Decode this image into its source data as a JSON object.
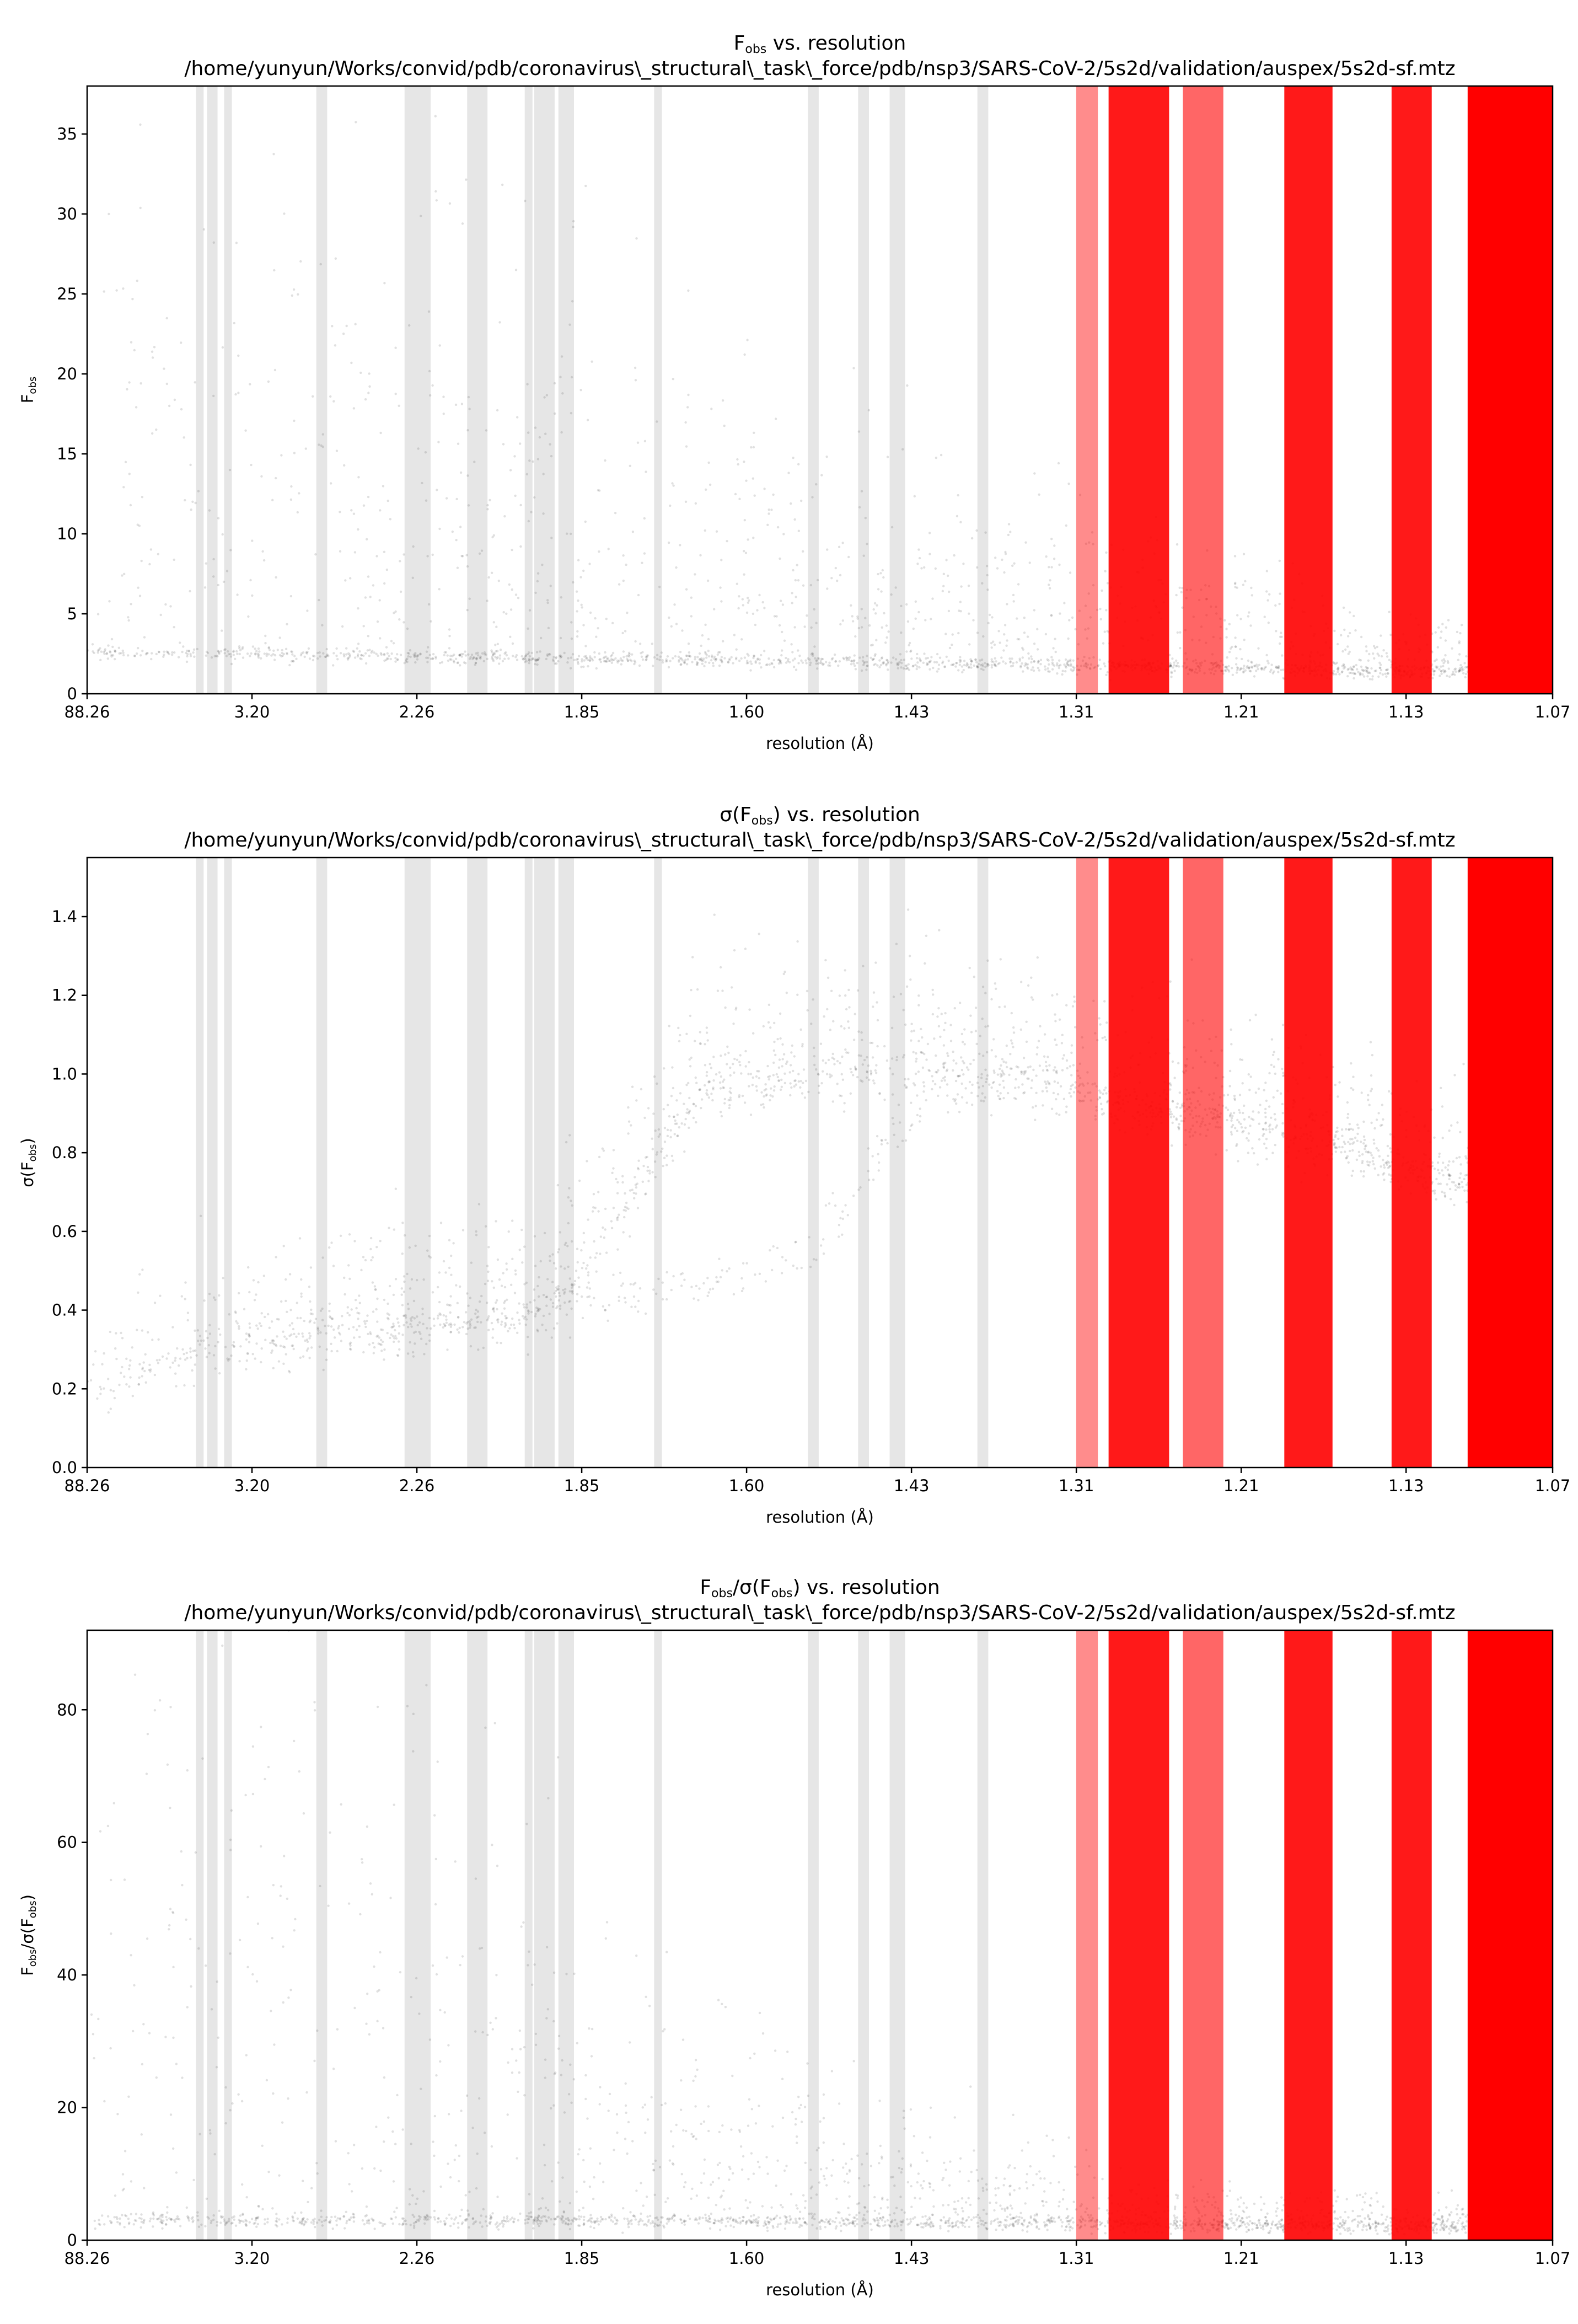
{
  "chart_data": [
    {
      "type": "scatter",
      "title": "F_obs vs. resolution",
      "title_parts": {
        "main": "F",
        "sub": "obs",
        "rest": " vs. resolution"
      },
      "subtitle": "/home/yunyun/Works/convid/pdb/coronavirus\\_structural\\_task\\_force/pdb/nsp3/SARS-CoV-2/5s2d/validation/auspex/5s2d-sf.mtz",
      "xlabel": "resolution (Å)",
      "ylabel": "F_obs",
      "ylabel_parts": {
        "main": "F",
        "sub": "obs",
        "rest": ""
      },
      "ylim": [
        0,
        38
      ],
      "yticks": [
        "0",
        "5",
        "10",
        "15",
        "20",
        "25",
        "30",
        "35"
      ],
      "yticks_values": [
        0,
        5,
        10,
        15,
        20,
        25,
        30,
        35
      ],
      "trend": {
        "x": [
          0.0,
          0.12,
          0.33,
          0.6,
          0.9,
          1.0
        ],
        "y": [
          2.6,
          2.5,
          2.2,
          1.9,
          1.4,
          1.3
        ]
      },
      "spread": {
        "x": [
          0.0,
          0.2,
          0.33,
          0.5,
          0.65,
          0.75,
          0.9,
          1.0
        ],
        "y": [
          34,
          30,
          22,
          14,
          10,
          7,
          4,
          2
        ]
      }
    },
    {
      "type": "scatter",
      "title": "σ(F_obs) vs. resolution",
      "title_parts": {
        "main": "σ(F",
        "sub": "obs",
        "rest": ") vs. resolution"
      },
      "subtitle": "/home/yunyun/Works/convid/pdb/coronavirus\\_structural\\_task\\_force/pdb/nsp3/SARS-CoV-2/5s2d/validation/auspex/5s2d-sf.mtz",
      "xlabel": "resolution (Å)",
      "ylabel": "σ(F_obs)",
      "ylabel_parts": {
        "main": "σ(F",
        "sub": "obs",
        "rest": ")"
      },
      "ylim": [
        0,
        1.55
      ],
      "yticks": [
        "0.0",
        "0.2",
        "0.4",
        "0.6",
        "0.8",
        "1.0",
        "1.2",
        "1.4"
      ],
      "yticks_values": [
        0,
        0.2,
        0.4,
        0.6,
        0.8,
        1.0,
        1.2,
        1.4
      ],
      "trend": {
        "x": [
          0.0,
          0.03,
          0.07,
          0.13,
          0.22,
          0.3,
          0.34,
          0.42,
          0.5,
          0.55,
          0.6,
          0.65,
          0.7,
          0.8,
          0.88,
          0.92,
          0.96,
          1.0
        ],
        "y": [
          0.16,
          0.22,
          0.3,
          0.31,
          0.35,
          0.37,
          0.5,
          0.95,
          0.98,
          1.0,
          0.99,
          0.98,
          0.92,
          0.86,
          0.78,
          0.73,
          0.7,
          0.7
        ]
      },
      "trend2": {
        "x": [
          0.0,
          0.1,
          0.2,
          0.3,
          0.34,
          0.42,
          0.5,
          0.55,
          0.6
        ],
        "y": [
          0.16,
          0.33,
          0.36,
          0.38,
          0.42,
          0.45,
          0.55,
          0.85,
          0.97
        ]
      },
      "spread": {
        "x": [
          0.0,
          0.5,
          1.0
        ],
        "y": [
          0.12,
          0.15,
          0.1
        ]
      }
    },
    {
      "type": "scatter",
      "title": "F_obs/σ(F_obs) vs. resolution",
      "title_parts": {
        "main": "F",
        "sub": "obs",
        "rest": "/σ(F",
        "sub2": "obs",
        "rest2": ") vs. resolution"
      },
      "subtitle": "/home/yunyun/Works/convid/pdb/coronavirus\\_structural\\_task\\_force/pdb/nsp3/SARS-CoV-2/5s2d/validation/auspex/5s2d-sf.mtz",
      "xlabel": "resolution (Å)",
      "ylabel": "F_obs/σ(F_obs)",
      "ylabel_parts": {
        "main": "F",
        "sub": "obs",
        "rest": "/σ(F",
        "sub2": "obs",
        "rest2": ")"
      },
      "ylim": [
        0,
        92
      ],
      "yticks": [
        "0",
        "20",
        "40",
        "60",
        "80"
      ],
      "yticks_values": [
        0,
        20,
        40,
        60,
        80
      ],
      "trend": {
        "x": [
          0.0,
          0.33,
          0.6,
          0.9,
          1.0
        ],
        "y": [
          3.0,
          3.0,
          2.6,
          2.0,
          1.8
        ]
      },
      "spread": {
        "x": [
          0.0,
          0.15,
          0.3,
          0.33,
          0.5,
          0.6,
          0.7,
          0.8,
          1.0
        ],
        "y": [
          90,
          85,
          70,
          40,
          20,
          12,
          8,
          5,
          3
        ]
      }
    }
  ],
  "x_axis": {
    "ticks": [
      "88.26",
      "3.20",
      "2.26",
      "1.85",
      "1.60",
      "1.43",
      "1.31",
      "1.21",
      "1.13",
      "1.07"
    ],
    "ticks_position": [
      0.0,
      0.1125,
      0.225,
      0.3375,
      0.45,
      0.5625,
      0.675,
      0.7875,
      0.9,
      1.0
    ]
  },
  "ice_ring_bands": {
    "gray": [
      [
        0.0742,
        0.0795
      ],
      [
        0.0818,
        0.089
      ],
      [
        0.0935,
        0.0988
      ],
      [
        0.1564,
        0.1638
      ],
      [
        0.2166,
        0.2344
      ],
      [
        0.2593,
        0.2732
      ],
      [
        0.2986,
        0.3039
      ],
      [
        0.3051,
        0.319
      ],
      [
        0.3216,
        0.3322
      ],
      [
        0.3869,
        0.3922
      ],
      [
        0.4918,
        0.4992
      ],
      [
        0.5261,
        0.5335
      ],
      [
        0.5476,
        0.5582
      ],
      [
        0.6075,
        0.6149
      ]
    ],
    "red": [
      {
        "range": [
          0.6749,
          0.6897
        ],
        "opacity": 0.45
      },
      {
        "range": [
          0.697,
          0.7383
        ],
        "opacity": 0.9
      },
      {
        "range": [
          0.7477,
          0.7753
        ],
        "opacity": 0.6
      },
      {
        "range": [
          0.8169,
          0.8498
        ],
        "opacity": 0.9
      },
      {
        "range": [
          0.8901,
          0.9175
        ],
        "opacity": 0.9
      },
      {
        "range": [
          0.942,
          1.0
        ],
        "opacity": 1.0
      }
    ]
  },
  "colors": {
    "ice_ring_gray": "#e6e6e6",
    "ice_ring_red": "#ff0000",
    "points": "#000000",
    "background": "#ffffff"
  }
}
